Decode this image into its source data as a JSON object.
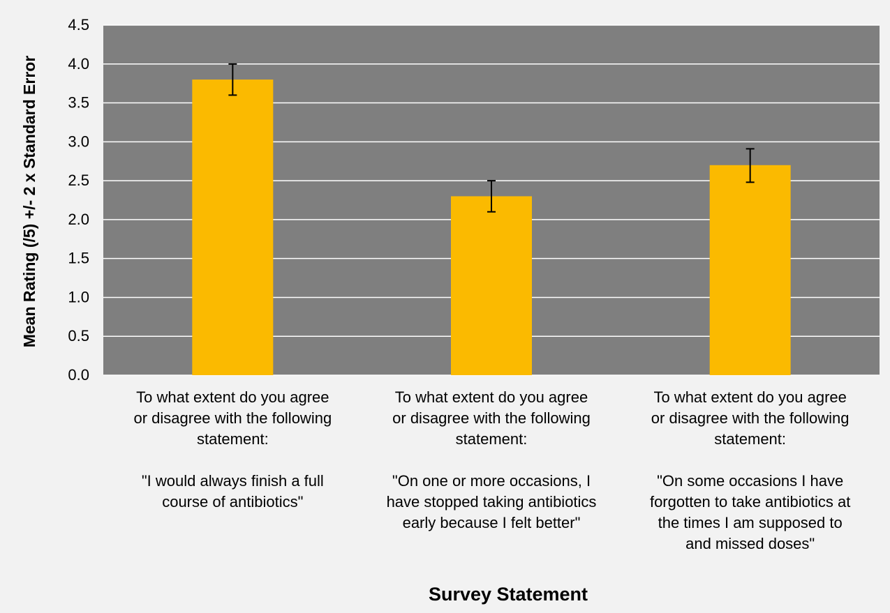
{
  "chart_data": {
    "type": "bar",
    "title": "",
    "xlabel": "Survey Statement",
    "ylabel": "Mean Rating (/5) +/- 2 x Standard Error",
    "ylim": [
      0,
      4.5
    ],
    "yticks": [
      "0.0",
      "0.5",
      "1.0",
      "1.5",
      "2.0",
      "2.5",
      "3.0",
      "3.5",
      "4.0",
      "4.5"
    ],
    "grid": true,
    "legend": "none",
    "categories": [
      [
        "To what extent do you agree",
        "or disagree with the following",
        "statement:",
        "",
        "\"I would always finish a full",
        "course of antibiotics\""
      ],
      [
        "To what extent do you agree",
        "or disagree with the following",
        "statement:",
        "",
        "\"On one or more occasions, I",
        "have stopped taking antibiotics",
        "early because I felt better\""
      ],
      [
        "To what extent do you agree",
        "or disagree with the following",
        "statement:",
        "",
        "\"On some occasions I have",
        "forgotten to take antibiotics at",
        "the times I am supposed to",
        "and missed doses\""
      ]
    ],
    "values": [
      3.8,
      2.3,
      2.7
    ],
    "error_low": [
      3.6,
      2.1,
      2.48
    ],
    "error_high": [
      4.0,
      2.5,
      2.91
    ],
    "colors": {
      "bar": "#fbba00",
      "plot_background": "#7f7f7f",
      "page_background": "#f2f2f2",
      "gridline": "#ffffff",
      "error_bar": "#000000",
      "text": "#000000"
    }
  }
}
